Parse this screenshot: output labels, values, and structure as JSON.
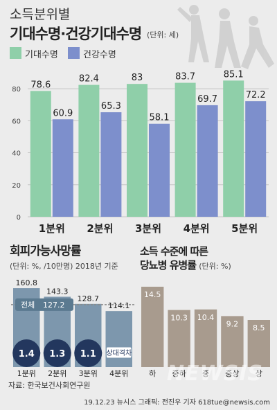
{
  "header": {
    "title_line1": "소득분위별",
    "title_line2": "기대수명·건강기대수명",
    "unit": "(단위: 세)"
  },
  "colors": {
    "background": "#ececec",
    "life_expectancy": "#8fcfa9",
    "healthy_life_expectancy": "#7d8fcc",
    "avoidable_death": "#7d97ad",
    "ratio_circle": "#23375e",
    "diabetes": "#a89b8e",
    "total_line": "#8a8a8a"
  },
  "chart_data": [
    {
      "type": "bar",
      "title": "기대수명·건강기대수명",
      "unit": "(단위: 세)",
      "categories": [
        "1분위",
        "2분위",
        "3분위",
        "4분위",
        "5분위"
      ],
      "series": [
        {
          "name": "기대수명",
          "values": [
            78.6,
            82.4,
            83,
            83.7,
            85.1
          ],
          "labels": [
            "78.6",
            "82.4",
            "83",
            "83.7",
            "85.1"
          ]
        },
        {
          "name": "건강수명",
          "values": [
            60.9,
            65.3,
            58.1,
            69.7,
            72.2
          ],
          "labels": [
            "60.9",
            "65.3",
            "58.1",
            "69.7",
            "72.2"
          ]
        }
      ],
      "ylim": [
        0,
        90
      ],
      "yticks": [
        0,
        20,
        40,
        60,
        80
      ],
      "grid": true,
      "legend": "top-left"
    },
    {
      "type": "bar",
      "title": "회피가능사망률",
      "subtitle": "(단위: %, /10만명)  2018년 기준",
      "categories": [
        "1분위",
        "2분위",
        "3분위",
        "4분위"
      ],
      "values": [
        160.8,
        143.3,
        128.7,
        114.1
      ],
      "labels": [
        "160.8",
        "143.3",
        "128.7",
        "114.1"
      ],
      "ylim": [
        0,
        175
      ],
      "reference_line": {
        "label": "전체",
        "value": 127.2,
        "value_label": "127.2"
      },
      "ratio_label": "상대격차",
      "ratios": [
        1.4,
        1.3,
        1.1
      ],
      "ratio_labels": [
        "1.4",
        "1.3",
        "1.1"
      ]
    },
    {
      "type": "bar",
      "title": "소득 수준에 따른 당뇨병 유병률",
      "unit": "(단위: %)",
      "categories": [
        "하",
        "중하",
        "중",
        "중상",
        "상"
      ],
      "values": [
        14.5,
        10.3,
        10.4,
        9.2,
        8.5
      ],
      "labels": [
        "14.5",
        "10.3",
        "10.4",
        "9.2",
        "8.5"
      ],
      "ylim": [
        0,
        15.5
      ]
    }
  ],
  "section2": {
    "title": "회피가능사망률",
    "subtitle": "(단위: %, /10만명)  2018년 기준"
  },
  "section3": {
    "title_line1": "소득 수준에 따른",
    "title_line2": "당뇨병 유병률",
    "unit": "(단위: %)"
  },
  "footer": {
    "source": "자료: 한국보건사회연구원",
    "credit": "19.12.23  뉴시스 그래픽: 전진우 기자 618tue@newsis.com",
    "watermark": "NEWSIS"
  }
}
